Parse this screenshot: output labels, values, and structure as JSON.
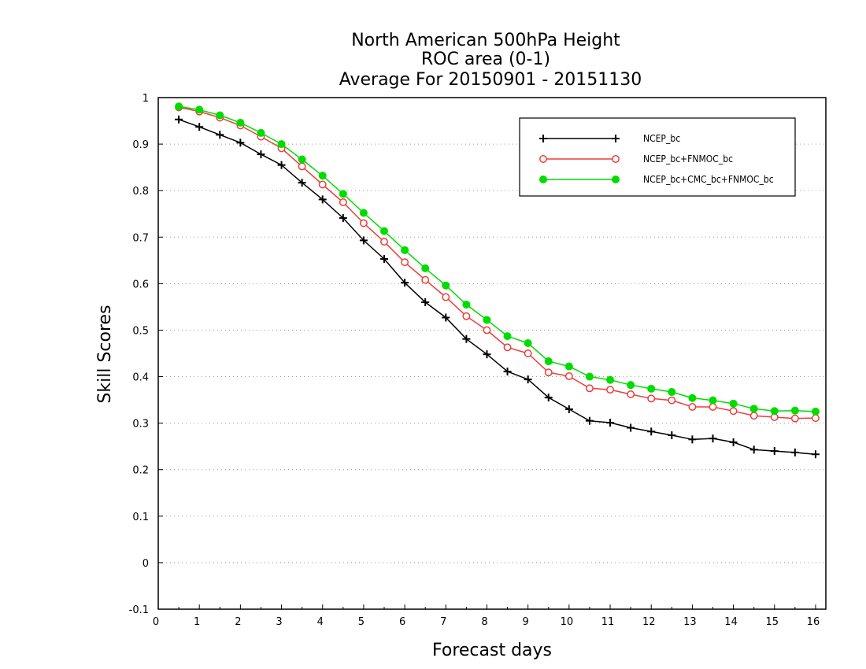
{
  "chart_data": {
    "type": "line",
    "title": [
      "North American 500hPa Height",
      "ROC area (0-1)",
      "Average For 20150901 - 20151130"
    ],
    "xlabel": "Forecast days",
    "ylabel": "Skill Scores",
    "xlim": [
      0,
      16.25
    ],
    "ylim": [
      -0.1,
      1
    ],
    "x_ticks": [
      0,
      1,
      2,
      3,
      4,
      5,
      6,
      7,
      8,
      9,
      10,
      11,
      12,
      13,
      14,
      15,
      16
    ],
    "y_ticks": [
      -0.1,
      0,
      0.1,
      0.2,
      0.3,
      0.4,
      0.5,
      0.6,
      0.7,
      0.8,
      0.9,
      1
    ],
    "y_tick_labels": [
      "-0.1",
      "0",
      "0.1",
      "0.2",
      "0.3",
      "0.4",
      "0.5",
      "0.6",
      "0.7",
      "0.8",
      "0.9",
      "1"
    ],
    "grid": "horizontal-dotted",
    "legend_position": "top-right",
    "x": [
      0.5,
      1.0,
      1.5,
      2.0,
      2.5,
      3.0,
      3.5,
      4.0,
      4.5,
      5.0,
      5.5,
      6.0,
      6.5,
      7.0,
      7.5,
      8.0,
      8.5,
      9.0,
      9.5,
      10.0,
      10.5,
      11.0,
      11.5,
      12.0,
      12.5,
      13.0,
      13.5,
      14.0,
      14.5,
      15.0,
      15.5,
      16.0
    ],
    "series": [
      {
        "name": "NCEP_bc",
        "color": "#000000",
        "marker": "plus",
        "values": [
          0.953,
          0.937,
          0.92,
          0.903,
          0.878,
          0.855,
          0.817,
          0.781,
          0.741,
          0.693,
          0.653,
          0.602,
          0.56,
          0.527,
          0.481,
          0.448,
          0.411,
          0.394,
          0.355,
          0.33,
          0.305,
          0.301,
          0.29,
          0.282,
          0.274,
          0.265,
          0.267,
          0.259,
          0.243,
          0.24,
          0.237,
          0.233
        ]
      },
      {
        "name": "NCEP_bc+FNMOC_bc",
        "color": "#ee3b3b",
        "marker": "open-circle",
        "values": [
          0.979,
          0.97,
          0.957,
          0.94,
          0.916,
          0.891,
          0.852,
          0.813,
          0.775,
          0.73,
          0.69,
          0.646,
          0.608,
          0.571,
          0.53,
          0.5,
          0.463,
          0.45,
          0.409,
          0.401,
          0.375,
          0.372,
          0.362,
          0.353,
          0.349,
          0.335,
          0.335,
          0.326,
          0.316,
          0.313,
          0.31,
          0.311
        ]
      },
      {
        "name": "NCEP_bc+CMC_bc+FNMOC_bc",
        "color": "#00dc00",
        "marker": "filled-circle",
        "values": [
          0.981,
          0.974,
          0.962,
          0.946,
          0.924,
          0.9,
          0.867,
          0.832,
          0.793,
          0.752,
          0.713,
          0.672,
          0.633,
          0.596,
          0.555,
          0.522,
          0.487,
          0.472,
          0.433,
          0.422,
          0.4,
          0.393,
          0.382,
          0.374,
          0.367,
          0.354,
          0.349,
          0.342,
          0.331,
          0.326,
          0.327,
          0.325
        ]
      }
    ]
  }
}
